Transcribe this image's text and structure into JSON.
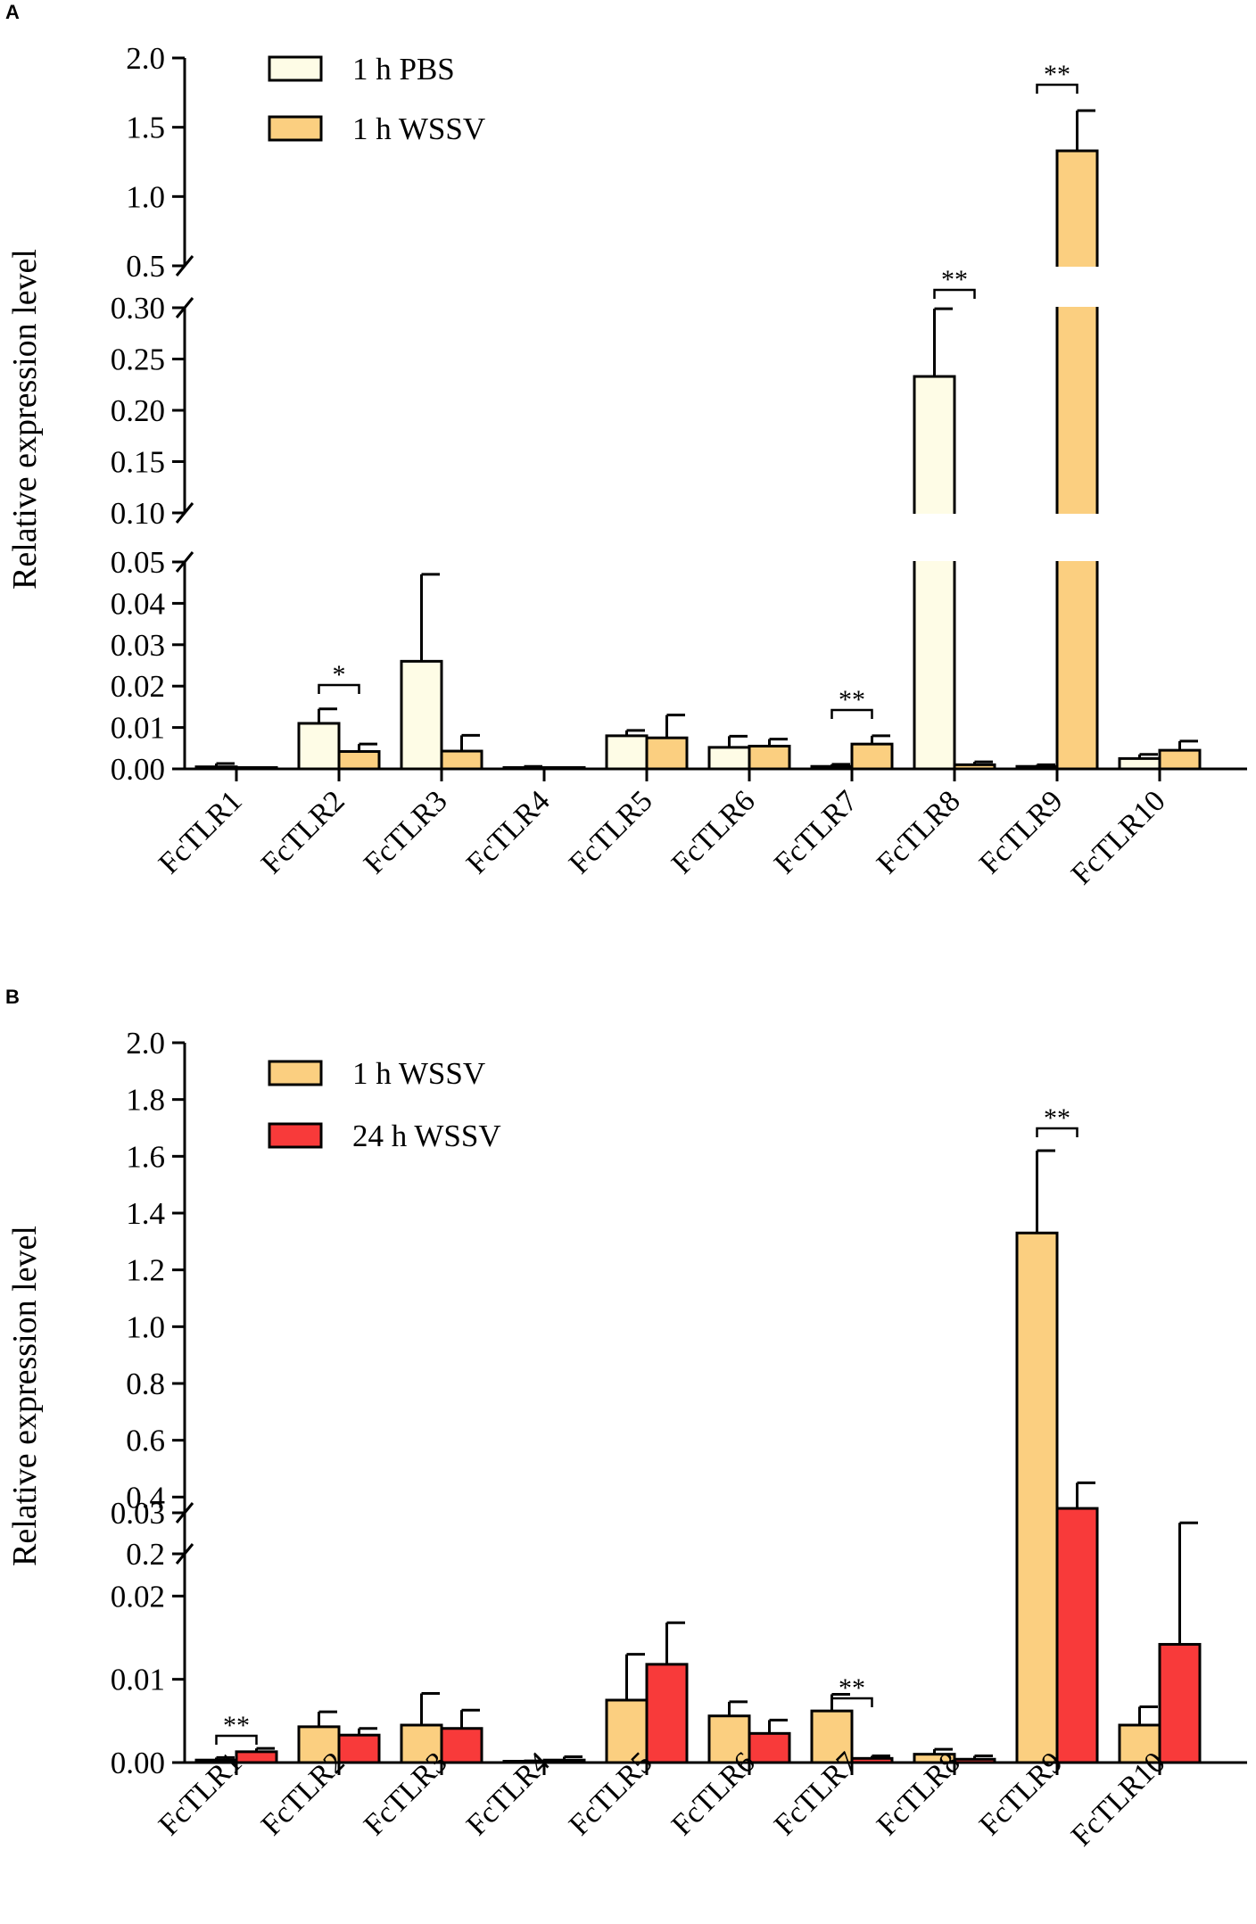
{
  "chart_data": [
    {
      "panel": "A",
      "type": "bar",
      "ylabel": "Relative expression level",
      "categories": [
        "FcTLR1",
        "FcTLR2",
        "FcTLR3",
        "FcTLR4",
        "FcTLR5",
        "FcTLR6",
        "FcTLR7",
        "FcTLR8",
        "FcTLR9",
        "FcTLR10"
      ],
      "series": [
        {
          "name": "1 h PBS",
          "color": "#FEFCE6",
          "values": [
            0.0005,
            0.011,
            0.026,
            0.0003,
            0.008,
            0.0052,
            0.0006,
            0.233,
            0.0006,
            0.0025
          ],
          "errors": [
            0.0008,
            0.0035,
            0.021,
            0.0003,
            0.0013,
            0.0027,
            0.0005,
            0.066,
            0.0004,
            0.001
          ]
        },
        {
          "name": "1 h WSSV",
          "color": "#FBCF80",
          "values": [
            0.0002,
            0.0042,
            0.0043,
            0.0001,
            0.0075,
            0.0055,
            0.006,
            0.001,
            1.33,
            0.0045
          ],
          "errors": [
            0.0001,
            0.0018,
            0.0038,
            0.0001,
            0.0055,
            0.0017,
            0.002,
            0.0007,
            0.29,
            0.0022
          ]
        }
      ],
      "axis_segments": [
        {
          "ylim": [
            0,
            0.05
          ],
          "ticks": [
            "0.00",
            "0.01",
            "0.02",
            "0.03",
            "0.04",
            "0.05"
          ]
        },
        {
          "ylim": [
            0.1,
            0.3
          ],
          "ticks": [
            "0.10",
            "0.15",
            "0.20",
            "0.25",
            "0.30"
          ]
        },
        {
          "ylim": [
            0.5,
            2.0
          ],
          "ticks": [
            "0.5",
            "1.0",
            "1.5",
            "2.0"
          ]
        }
      ],
      "significance": [
        {
          "category": "FcTLR2",
          "label": "*"
        },
        {
          "category": "FcTLR7",
          "label": "**"
        },
        {
          "category": "FcTLR8",
          "label": "**"
        },
        {
          "category": "FcTLR9",
          "label": "**"
        }
      ]
    },
    {
      "panel": "B",
      "type": "bar",
      "ylabel": "Relative expression level",
      "categories": [
        "FcTLR1",
        "FcTLR2",
        "FcTLR3",
        "FcTLR4",
        "FcTLR5",
        "FcTLR6",
        "FcTLR7",
        "FcTLR8",
        "FcTLR9",
        "FcTLR10"
      ],
      "series": [
        {
          "name": "1 h WSSV",
          "color": "#FBCF80",
          "values": [
            0.0003,
            0.0043,
            0.0045,
            0.0001,
            0.0075,
            0.0056,
            0.0062,
            0.001,
            1.33,
            0.0045
          ],
          "errors": [
            0.0003,
            0.0018,
            0.0038,
            0.0001,
            0.0055,
            0.0017,
            0.002,
            0.0006,
            0.29,
            0.0022
          ]
        },
        {
          "name": "24 h WSSV",
          "color": "#F83A3A",
          "values": [
            0.0013,
            0.0033,
            0.0041,
            0.0003,
            0.0118,
            0.0035,
            0.0005,
            0.0004,
            0.36,
            0.0142
          ],
          "errors": [
            0.0004,
            0.0008,
            0.0022,
            0.0004,
            0.005,
            0.0016,
            0.0003,
            0.0004,
            0.09,
            0.0146
          ]
        }
      ],
      "axis_segments": [
        {
          "ylim": [
            0,
            0.03
          ],
          "ticks": [
            "0.00",
            "0.01",
            "0.02",
            "0.03"
          ]
        },
        {
          "ylim": [
            0.2,
            2.0
          ],
          "ticks": [
            "0.2",
            "0.4",
            "0.6",
            "0.8",
            "1.0",
            "1.2",
            "1.4",
            "1.6",
            "1.8",
            "2.0"
          ]
        }
      ],
      "significance": [
        {
          "category": "FcTLR1",
          "label": "**"
        },
        {
          "category": "FcTLR7",
          "label": "**"
        },
        {
          "category": "FcTLR9",
          "label": "**"
        }
      ]
    }
  ]
}
